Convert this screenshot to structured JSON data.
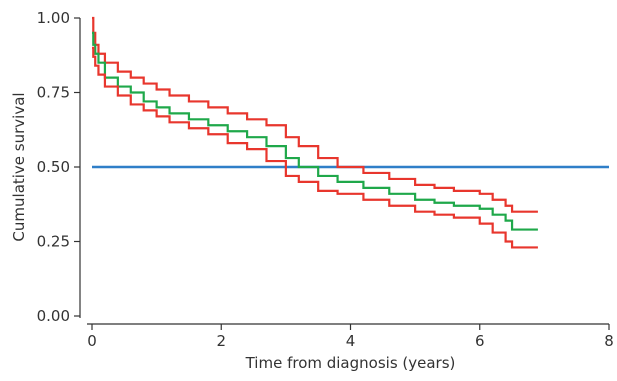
{
  "chart_data": {
    "type": "line",
    "xlabel": "Time from diagnosis (years)",
    "ylabel": "Cumulative survival",
    "xlim": [
      0,
      8
    ],
    "ylim": [
      0,
      1
    ],
    "x_ticks": [
      0,
      2,
      4,
      6,
      8
    ],
    "y_ticks": [
      "0.00",
      "0.25",
      "0.50",
      "0.75",
      "1.00"
    ],
    "grid": false,
    "legend": "none",
    "reference_line": {
      "y": 0.5,
      "color": "#2f7fc8"
    },
    "series": [
      {
        "role": "upper-confidence-bound",
        "color": "#e8362d",
        "step": true,
        "points": [
          [
            0,
            1.0
          ],
          [
            0.02,
            0.95
          ],
          [
            0.05,
            0.91
          ],
          [
            0.1,
            0.88
          ],
          [
            0.2,
            0.85
          ],
          [
            0.4,
            0.82
          ],
          [
            0.6,
            0.8
          ],
          [
            0.8,
            0.78
          ],
          [
            1.0,
            0.76
          ],
          [
            1.2,
            0.74
          ],
          [
            1.5,
            0.72
          ],
          [
            1.8,
            0.7
          ],
          [
            2.1,
            0.68
          ],
          [
            2.4,
            0.66
          ],
          [
            2.7,
            0.64
          ],
          [
            3.0,
            0.6
          ],
          [
            3.2,
            0.57
          ],
          [
            3.5,
            0.53
          ],
          [
            3.8,
            0.5
          ],
          [
            4.2,
            0.48
          ],
          [
            4.6,
            0.46
          ],
          [
            5.0,
            0.44
          ],
          [
            5.3,
            0.43
          ],
          [
            5.6,
            0.42
          ],
          [
            6.0,
            0.41
          ],
          [
            6.2,
            0.39
          ],
          [
            6.4,
            0.37
          ],
          [
            6.5,
            0.35
          ],
          [
            6.9,
            0.35
          ]
        ]
      },
      {
        "role": "survival-estimate",
        "color": "#1fa84a",
        "step": true,
        "points": [
          [
            0,
            0.95
          ],
          [
            0.02,
            0.91
          ],
          [
            0.05,
            0.88
          ],
          [
            0.1,
            0.85
          ],
          [
            0.2,
            0.8
          ],
          [
            0.4,
            0.77
          ],
          [
            0.6,
            0.75
          ],
          [
            0.8,
            0.72
          ],
          [
            1.0,
            0.7
          ],
          [
            1.2,
            0.68
          ],
          [
            1.5,
            0.66
          ],
          [
            1.8,
            0.64
          ],
          [
            2.1,
            0.62
          ],
          [
            2.4,
            0.6
          ],
          [
            2.7,
            0.57
          ],
          [
            3.0,
            0.53
          ],
          [
            3.2,
            0.5
          ],
          [
            3.5,
            0.47
          ],
          [
            3.8,
            0.45
          ],
          [
            4.2,
            0.43
          ],
          [
            4.6,
            0.41
          ],
          [
            5.0,
            0.39
          ],
          [
            5.3,
            0.38
          ],
          [
            5.6,
            0.37
          ],
          [
            6.0,
            0.36
          ],
          [
            6.2,
            0.34
          ],
          [
            6.4,
            0.32
          ],
          [
            6.5,
            0.29
          ],
          [
            6.9,
            0.29
          ]
        ]
      },
      {
        "role": "lower-confidence-bound",
        "color": "#e8362d",
        "step": true,
        "points": [
          [
            0,
            0.9
          ],
          [
            0.02,
            0.87
          ],
          [
            0.05,
            0.84
          ],
          [
            0.1,
            0.81
          ],
          [
            0.2,
            0.77
          ],
          [
            0.4,
            0.74
          ],
          [
            0.6,
            0.71
          ],
          [
            0.8,
            0.69
          ],
          [
            1.0,
            0.67
          ],
          [
            1.2,
            0.65
          ],
          [
            1.5,
            0.63
          ],
          [
            1.8,
            0.61
          ],
          [
            2.1,
            0.58
          ],
          [
            2.4,
            0.56
          ],
          [
            2.7,
            0.52
          ],
          [
            3.0,
            0.47
          ],
          [
            3.2,
            0.45
          ],
          [
            3.5,
            0.42
          ],
          [
            3.8,
            0.41
          ],
          [
            4.2,
            0.39
          ],
          [
            4.6,
            0.37
          ],
          [
            5.0,
            0.35
          ],
          [
            5.3,
            0.34
          ],
          [
            5.6,
            0.33
          ],
          [
            6.0,
            0.31
          ],
          [
            6.2,
            0.28
          ],
          [
            6.4,
            0.25
          ],
          [
            6.5,
            0.23
          ],
          [
            6.9,
            0.23
          ]
        ]
      }
    ]
  }
}
